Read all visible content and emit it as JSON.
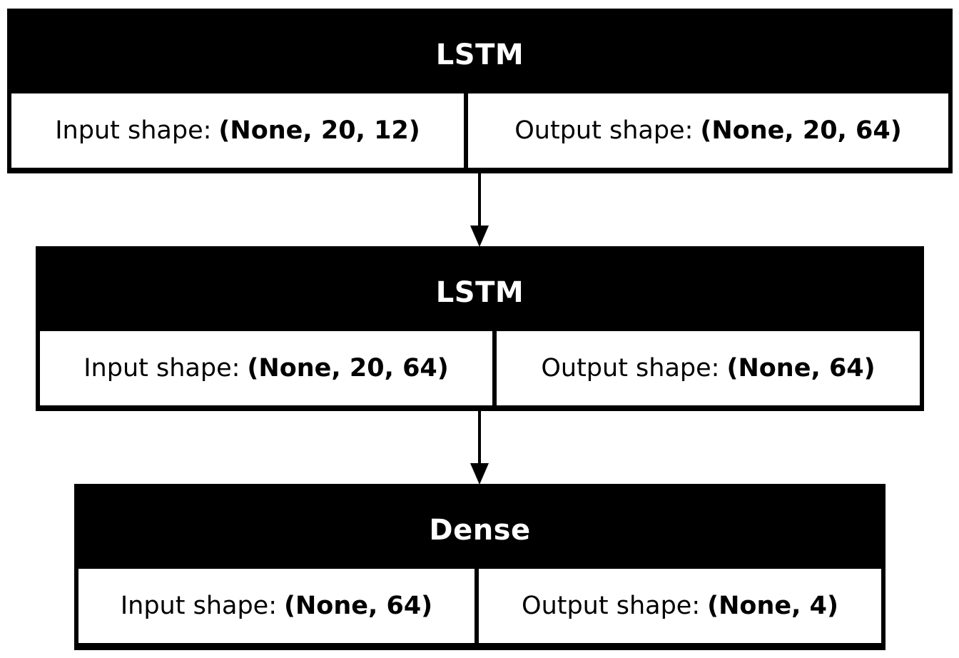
{
  "labels": {
    "input_prefix": "Input shape:",
    "output_prefix": "Output shape:"
  },
  "layers": [
    {
      "name": "LSTM",
      "input_shape": "(None, 20, 12)",
      "output_shape": "(None, 20, 64)"
    },
    {
      "name": "LSTM",
      "input_shape": "(None, 20, 64)",
      "output_shape": "(None, 64)"
    },
    {
      "name": "Dense",
      "input_shape": "(None, 64)",
      "output_shape": "(None, 4)"
    }
  ],
  "colors": {
    "header_bg": "#000000",
    "header_text": "#ffffff",
    "cell_bg": "#ffffff",
    "line": "#000000"
  }
}
